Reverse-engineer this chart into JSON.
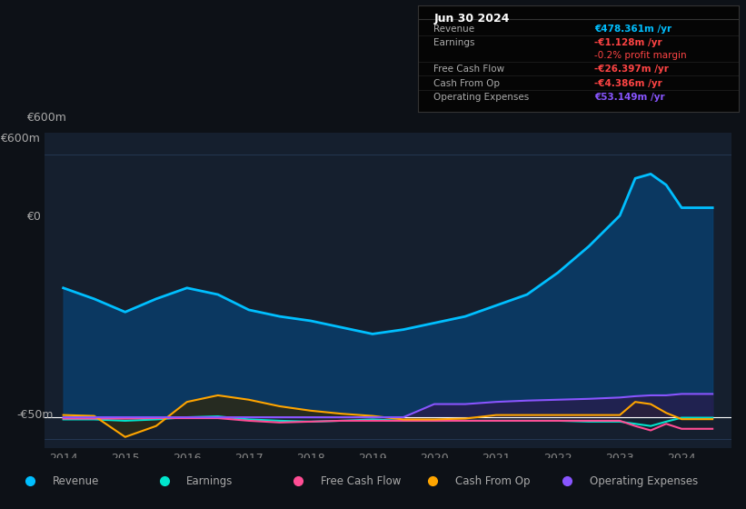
{
  "bg_color": "#0d1117",
  "plot_bg_color": "#111827",
  "chart_area_color": "#151f2e",
  "grid_color": "#1e2d3d",
  "title_box_bg": "#0a0a0a",
  "title_box_border": "#333333",
  "years": [
    2014,
    2014.5,
    2015,
    2015.5,
    2016,
    2016.5,
    2017,
    2017.5,
    2018,
    2018.5,
    2019,
    2019.5,
    2020,
    2020.5,
    2021,
    2021.5,
    2022,
    2022.5,
    2023,
    2023.25,
    2023.5,
    2023.75,
    2024,
    2024.5
  ],
  "revenue": [
    295,
    270,
    240,
    270,
    295,
    280,
    245,
    230,
    220,
    205,
    190,
    200,
    215,
    230,
    255,
    280,
    330,
    390,
    460,
    545,
    555,
    530,
    478,
    478
  ],
  "earnings": [
    -5,
    -5,
    -8,
    -5,
    0,
    2,
    -5,
    -8,
    -10,
    -8,
    -5,
    -8,
    -8,
    -8,
    -8,
    -8,
    -8,
    -10,
    -10,
    -15,
    -20,
    -10,
    -1.128,
    -1.128
  ],
  "free_cash_flow": [
    -3,
    -3,
    -3,
    -2,
    -2,
    -2,
    -8,
    -12,
    -10,
    -8,
    -8,
    -8,
    -8,
    -8,
    -8,
    -8,
    -8,
    -8,
    -8,
    -20,
    -30,
    -15,
    -26.397,
    -26.397
  ],
  "cash_from_op": [
    5,
    3,
    -45,
    -20,
    35,
    50,
    40,
    25,
    15,
    8,
    3,
    -5,
    -5,
    -3,
    5,
    5,
    5,
    5,
    5,
    35,
    30,
    10,
    -4.386,
    -4.386
  ],
  "operating_expenses": [
    0,
    0,
    0,
    0,
    0,
    0,
    0,
    0,
    0,
    0,
    0,
    0,
    30,
    30,
    35,
    38,
    40,
    42,
    45,
    48,
    50,
    50,
    53.149,
    53.149
  ],
  "revenue_color": "#00bfff",
  "revenue_fill_color": "#0a3d6b",
  "earnings_color": "#00e5cc",
  "earnings_fill_color": "#1a3a3a",
  "free_cash_flow_color": "#ff4d94",
  "cash_from_op_color": "#ffa500",
  "cash_from_op_fill_color": "#2a2a1a",
  "operating_expenses_color": "#8855ff",
  "operating_expenses_fill_color": "#2a1a4a",
  "ylim_min": -70,
  "ylim_max": 650,
  "ytick_positions": [
    600,
    0,
    -50
  ],
  "ytick_labels": [
    "€600m",
    "€0",
    "-€50m"
  ],
  "xtick_positions": [
    2014,
    2015,
    2016,
    2017,
    2018,
    2019,
    2020,
    2021,
    2022,
    2023,
    2024
  ],
  "xtick_labels": [
    "2014",
    "2015",
    "2016",
    "2017",
    "2018",
    "2019",
    "2020",
    "2021",
    "2022",
    "2023",
    "2024"
  ],
  "info_box": {
    "date": "Jun 30 2024",
    "revenue_val": "€478.361m /yr",
    "revenue_color": "#00bfff",
    "earnings_val": "-€1.128m /yr",
    "earnings_color": "#ff4444",
    "profit_margin": "-0.2% profit margin",
    "profit_margin_color": "#ff4444",
    "fcf_val": "-€26.397m /yr",
    "fcf_color": "#ff4444",
    "cashop_val": "-€4.386m /yr",
    "cashop_color": "#ff4444",
    "opex_val": "€53.149m /yr",
    "opex_color": "#8855ff"
  },
  "legend_items": [
    {
      "label": "Revenue",
      "color": "#00bfff"
    },
    {
      "label": "Earnings",
      "color": "#00e5cc"
    },
    {
      "label": "Free Cash Flow",
      "color": "#ff4d94"
    },
    {
      "label": "Cash From Op",
      "color": "#ffa500"
    },
    {
      "label": "Operating Expenses",
      "color": "#8855ff"
    }
  ]
}
